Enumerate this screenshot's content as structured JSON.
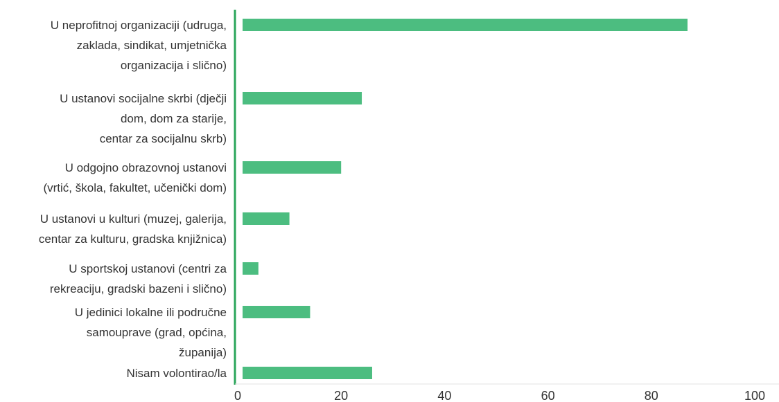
{
  "chart_data": {
    "type": "bar",
    "orientation": "horizontal",
    "categories": [
      [
        "U neprofitnoj organizaciji  (udruga,",
        "zaklada, sindikat, umjetnička",
        "organizacija i slično)"
      ],
      [
        "U ustanovi socijalne skrbi (dječji",
        "dom, dom za starije,",
        "centar za socijalnu skrb)"
      ],
      [
        "U odgojno obrazovnoj ustanovi",
        "(vrtić, škola, fakultet, učenički dom)"
      ],
      [
        "U ustanovi u kulturi (muzej, galerija,",
        "centar za kulturu, gradska knjižnica)"
      ],
      [
        "U sportskoj ustanovi (centri za",
        "rekreaciju, gradski bazeni i slično)"
      ],
      [
        "U jedinici lokalne ili područne",
        "samouprave (grad, općina,",
        "županija)"
      ],
      [
        "Nisam volontirao/la"
      ]
    ],
    "values": [
      87,
      24,
      20,
      10,
      4,
      14,
      26
    ],
    "xlim": [
      0,
      100
    ],
    "xticks": [
      "0",
      "20",
      "40",
      "60",
      "80",
      "100"
    ],
    "colors": {
      "bar": "#4cbd80",
      "axis": "#2aa55a",
      "grid": "#e3e3e3"
    },
    "grid": false
  }
}
